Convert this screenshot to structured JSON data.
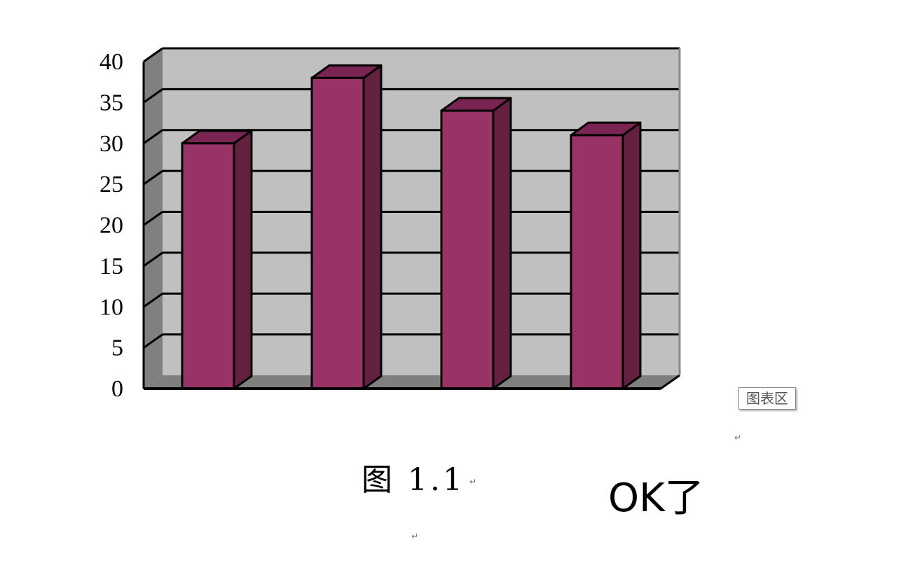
{
  "chart_data": {
    "type": "bar",
    "categories": [
      "",
      "",
      "",
      ""
    ],
    "values": [
      30,
      38,
      34,
      31
    ],
    "ylim": [
      0,
      40
    ],
    "yticks": [
      "0",
      "5",
      "10",
      "15",
      "20",
      "25",
      "30",
      "35",
      "40"
    ],
    "title": "",
    "xlabel": "",
    "ylabel": "",
    "grid": true,
    "style": "3d-column",
    "colors": {
      "bar_front": "#993366",
      "bar_top": "#7a2452",
      "bar_side": "#64203f",
      "back_wall": "#c0c0c0",
      "side_wall": "#808080",
      "floor": "#7f7f7f",
      "outline": "#000000"
    }
  },
  "chart_area_tag": "图表区",
  "caption": "图 1.1",
  "annotation": "OK了",
  "paragraph_mark": "↵"
}
